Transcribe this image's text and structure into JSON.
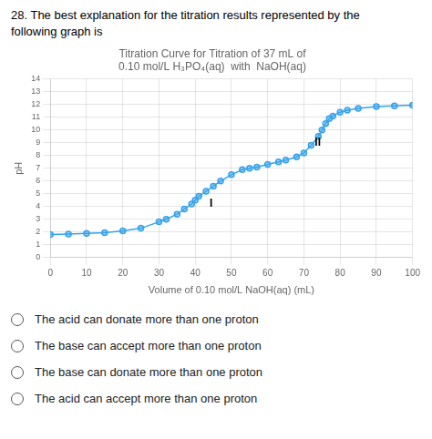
{
  "chart_data": {
    "type": "line",
    "question": "28. The best explanation for the titration results represented by the\nfollowing graph is",
    "title": [
      "Titration Curve for Titration of 37 mL of",
      "0.10 mol/L H₃PO₄(aq)  with  NaOH(aq)"
    ],
    "xlabel": "Volume of 0.10 mol/L NaOH(aq) (mL)",
    "ylabel": "pH",
    "xlim": [
      0,
      100
    ],
    "ylim": [
      0,
      14
    ],
    "xticks": [
      0,
      10,
      20,
      30,
      40,
      50,
      60,
      70,
      80,
      90,
      100
    ],
    "yticks": [
      0,
      1,
      2,
      3,
      4,
      5,
      6,
      7,
      8,
      9,
      10,
      11,
      12,
      13,
      14
    ],
    "x": [
      0,
      5,
      10,
      15,
      20,
      25,
      30,
      32,
      35,
      37,
      39,
      40,
      41,
      43,
      45,
      47,
      50,
      53,
      55,
      57,
      60,
      63,
      65,
      68,
      70,
      72,
      74,
      75,
      76,
      77,
      78,
      80,
      82,
      85,
      90,
      95,
      100
    ],
    "values": [
      1.8,
      1.85,
      1.9,
      1.95,
      2.1,
      2.3,
      2.8,
      3.0,
      3.4,
      3.8,
      4.2,
      4.5,
      4.8,
      5.2,
      5.6,
      6.0,
      6.5,
      6.9,
      7.0,
      7.1,
      7.3,
      7.5,
      7.65,
      7.9,
      8.2,
      8.8,
      9.5,
      10.0,
      10.5,
      10.9,
      11.1,
      11.4,
      11.55,
      11.7,
      11.85,
      11.9,
      11.95
    ],
    "marker": "circle",
    "grid": true,
    "annotations": [
      {
        "text": "I",
        "x": 44,
        "y": 4.2
      },
      {
        "text": "II",
        "x": 73,
        "y": 9.0
      }
    ],
    "options": [
      "The acid can donate more than one proton",
      "The base can accept more than one proton",
      "The base can donate more than one proton",
      "The acid can accept more than one proton"
    ]
  }
}
